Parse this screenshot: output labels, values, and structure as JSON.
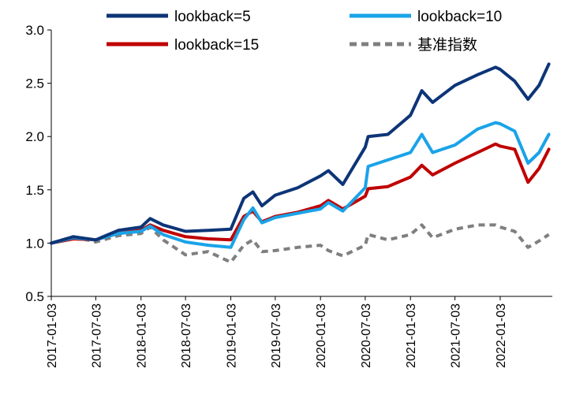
{
  "chart_data": {
    "type": "line",
    "xlabel": "",
    "ylabel": "",
    "ylim": [
      0.5,
      3.0
    ],
    "yticks": [
      "0.5",
      "1.0",
      "1.5",
      "2.0",
      "2.5",
      "3.0"
    ],
    "x_tick_labels": [
      "2017-01-03",
      "2017-07-03",
      "2018-01-03",
      "2018-07-03",
      "2019-01-03",
      "2019-07-03",
      "2020-01-03",
      "2020-07-03",
      "2021-01-03",
      "2021-07-03",
      "2022-01-03"
    ],
    "x_dates": [
      "2017-01-03",
      "2017-04-03",
      "2017-07-03",
      "2017-10-03",
      "2018-01-03",
      "2018-02-09",
      "2018-04-03",
      "2018-07-03",
      "2018-10-03",
      "2019-01-03",
      "2019-02-25",
      "2019-04-03",
      "2019-05-10",
      "2019-07-03",
      "2019-10-03",
      "2020-01-03",
      "2020-02-04",
      "2020-04-03",
      "2020-07-03",
      "2020-07-15",
      "2020-10-03",
      "2021-01-03",
      "2021-02-18",
      "2021-04-03",
      "2021-07-03",
      "2021-10-03",
      "2021-12-15",
      "2022-01-03",
      "2022-03-03",
      "2022-04-26",
      "2022-06-10",
      "2022-07-20"
    ],
    "grid": false,
    "legend_position": "top",
    "series": [
      {
        "name": "lookback=5",
        "color": "#0d3577",
        "style": "solid",
        "values": [
          1.0,
          1.06,
          1.03,
          1.12,
          1.15,
          1.23,
          1.17,
          1.11,
          1.12,
          1.13,
          1.42,
          1.48,
          1.35,
          1.45,
          1.52,
          1.63,
          1.68,
          1.55,
          1.9,
          2.0,
          2.02,
          2.2,
          2.43,
          2.32,
          2.48,
          2.58,
          2.65,
          2.63,
          2.52,
          2.35,
          2.48,
          2.68
        ]
      },
      {
        "name": "lookback=10",
        "color": "#1aa3e8",
        "style": "solid",
        "values": [
          1.0,
          1.05,
          1.03,
          1.09,
          1.11,
          1.16,
          1.08,
          1.01,
          0.98,
          0.96,
          1.22,
          1.33,
          1.19,
          1.24,
          1.28,
          1.32,
          1.38,
          1.3,
          1.52,
          1.72,
          1.78,
          1.85,
          2.02,
          1.85,
          1.92,
          2.07,
          2.13,
          2.12,
          2.05,
          1.75,
          1.85,
          2.02
        ]
      },
      {
        "name": "lookback=15",
        "color": "#c00000",
        "style": "solid",
        "values": [
          1.0,
          1.04,
          1.03,
          1.09,
          1.12,
          1.17,
          1.12,
          1.06,
          1.04,
          1.03,
          1.25,
          1.3,
          1.2,
          1.25,
          1.29,
          1.35,
          1.4,
          1.32,
          1.44,
          1.51,
          1.53,
          1.62,
          1.73,
          1.64,
          1.75,
          1.85,
          1.93,
          1.91,
          1.88,
          1.57,
          1.7,
          1.88
        ]
      },
      {
        "name": "基准指数",
        "color": "#7f7f7f",
        "style": "dashed",
        "values": [
          1.0,
          1.06,
          1.01,
          1.07,
          1.09,
          1.15,
          1.03,
          0.89,
          0.92,
          0.82,
          0.98,
          1.03,
          0.92,
          0.93,
          0.96,
          0.98,
          0.93,
          0.88,
          0.98,
          1.08,
          1.03,
          1.08,
          1.17,
          1.05,
          1.13,
          1.17,
          1.17,
          1.15,
          1.11,
          0.96,
          1.02,
          1.08
        ]
      }
    ]
  }
}
